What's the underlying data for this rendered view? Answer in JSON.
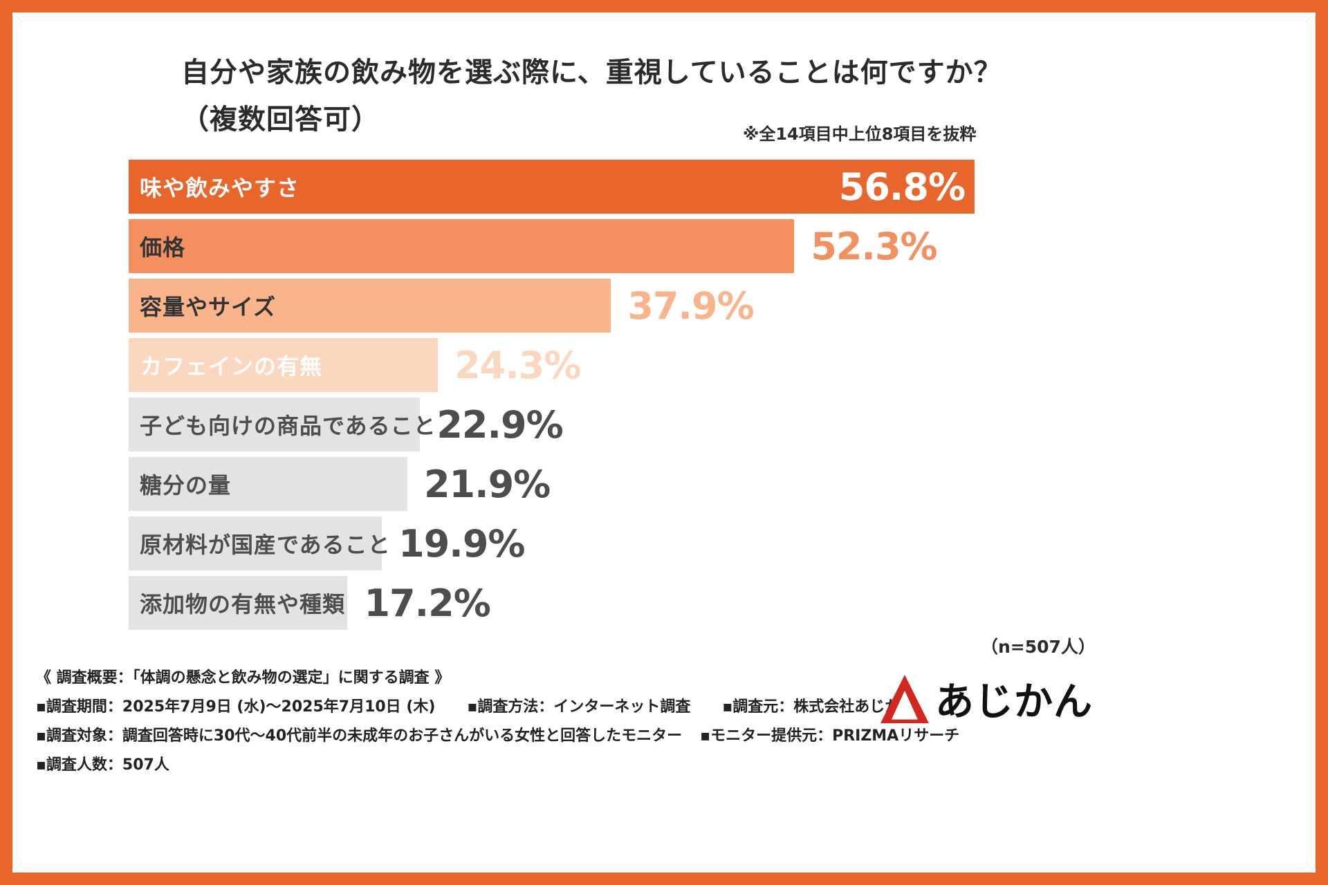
{
  "header": {
    "title_line1": "自分や家族の飲み物を選ぶ際に、重視していることは何ですか？",
    "title_line2": "（複数回答可）",
    "note": "※全14項目中上位8項目を抜粋"
  },
  "chart_data": {
    "type": "bar",
    "orientation": "horizontal",
    "title": "自分や家族の飲み物を選ぶ際に、重視していることは何ですか？（複数回答可）",
    "subtitle": "※全14項目中上位8項目を抜粋",
    "value_unit": "%",
    "xlim": [
      0,
      60
    ],
    "grid": false,
    "legend": false,
    "sample_note": "（n=507人）",
    "sample_size": 507,
    "categories": [
      "味や飲みやすさ",
      "価格",
      "容量やサイズ",
      "カフェインの有無",
      "子ども向けの商品であること",
      "糖分の量",
      "原材料が国産であること",
      "添加物の有無や種類"
    ],
    "values": [
      56.8,
      52.3,
      37.9,
      24.3,
      22.9,
      21.9,
      19.9,
      17.2
    ],
    "bars": [
      {
        "label": "味や飲みやすさ",
        "value": 56.8,
        "display": "56.8%",
        "bar_color": "#e8662b",
        "label_color": "#ffffff",
        "pct_color": "#ffffff",
        "pct_inside": true
      },
      {
        "label": "価格",
        "value": 52.3,
        "display": "52.3%",
        "bar_color": "#f4905f",
        "label_color": "#333333",
        "pct_color": "#f4905f",
        "pct_inside": false
      },
      {
        "label": "容量やサイズ",
        "value": 37.9,
        "display": "37.9%",
        "bar_color": "#f9b48c",
        "label_color": "#333333",
        "pct_color": "#f9b48c",
        "pct_inside": false
      },
      {
        "label": "カフェインの有無",
        "value": 24.3,
        "display": "24.3%",
        "bar_color": "#fcd7bf",
        "label_color": "#ffffff",
        "pct_color": "#fcd7bf",
        "pct_inside": false
      },
      {
        "label": "子ども向けの商品であること",
        "value": 22.9,
        "display": "22.9%",
        "bar_color": "#e3e3e3",
        "label_color": "#4d4d4d",
        "pct_color": "#4d4d4d",
        "pct_inside": false
      },
      {
        "label": "糖分の量",
        "value": 21.9,
        "display": "21.9%",
        "bar_color": "#e3e3e3",
        "label_color": "#4d4d4d",
        "pct_color": "#4d4d4d",
        "pct_inside": false
      },
      {
        "label": "原材料が国産であること",
        "value": 19.9,
        "display": "19.9%",
        "bar_color": "#e3e3e3",
        "label_color": "#4d4d4d",
        "pct_color": "#4d4d4d",
        "pct_inside": false
      },
      {
        "label": "添加物の有無や種類",
        "value": 17.2,
        "display": "17.2%",
        "bar_color": "#e3e3e3",
        "label_color": "#4d4d4d",
        "pct_color": "#4d4d4d",
        "pct_inside": false
      }
    ]
  },
  "footer": {
    "overview": "《 調査概要：「体調の懸念と飲み物の選定」に関する調査 》",
    "line2": [
      "▪調査期間：2025年7月9日 (水)〜2025年7月10日 (木)",
      "▪調査方法：インターネット調査",
      "▪調査元：株式会社あじかん"
    ],
    "line3": [
      "▪調査対象：調査回答時に30代〜40代前半の未成年のお子さんがいる女性と回答したモニター",
      "▪モニター提供元：PRIZMAリサーチ"
    ],
    "line4": [
      "▪調査人数：507人"
    ]
  },
  "logo": {
    "text": "あじかん",
    "mark_color": "#d0281e"
  }
}
